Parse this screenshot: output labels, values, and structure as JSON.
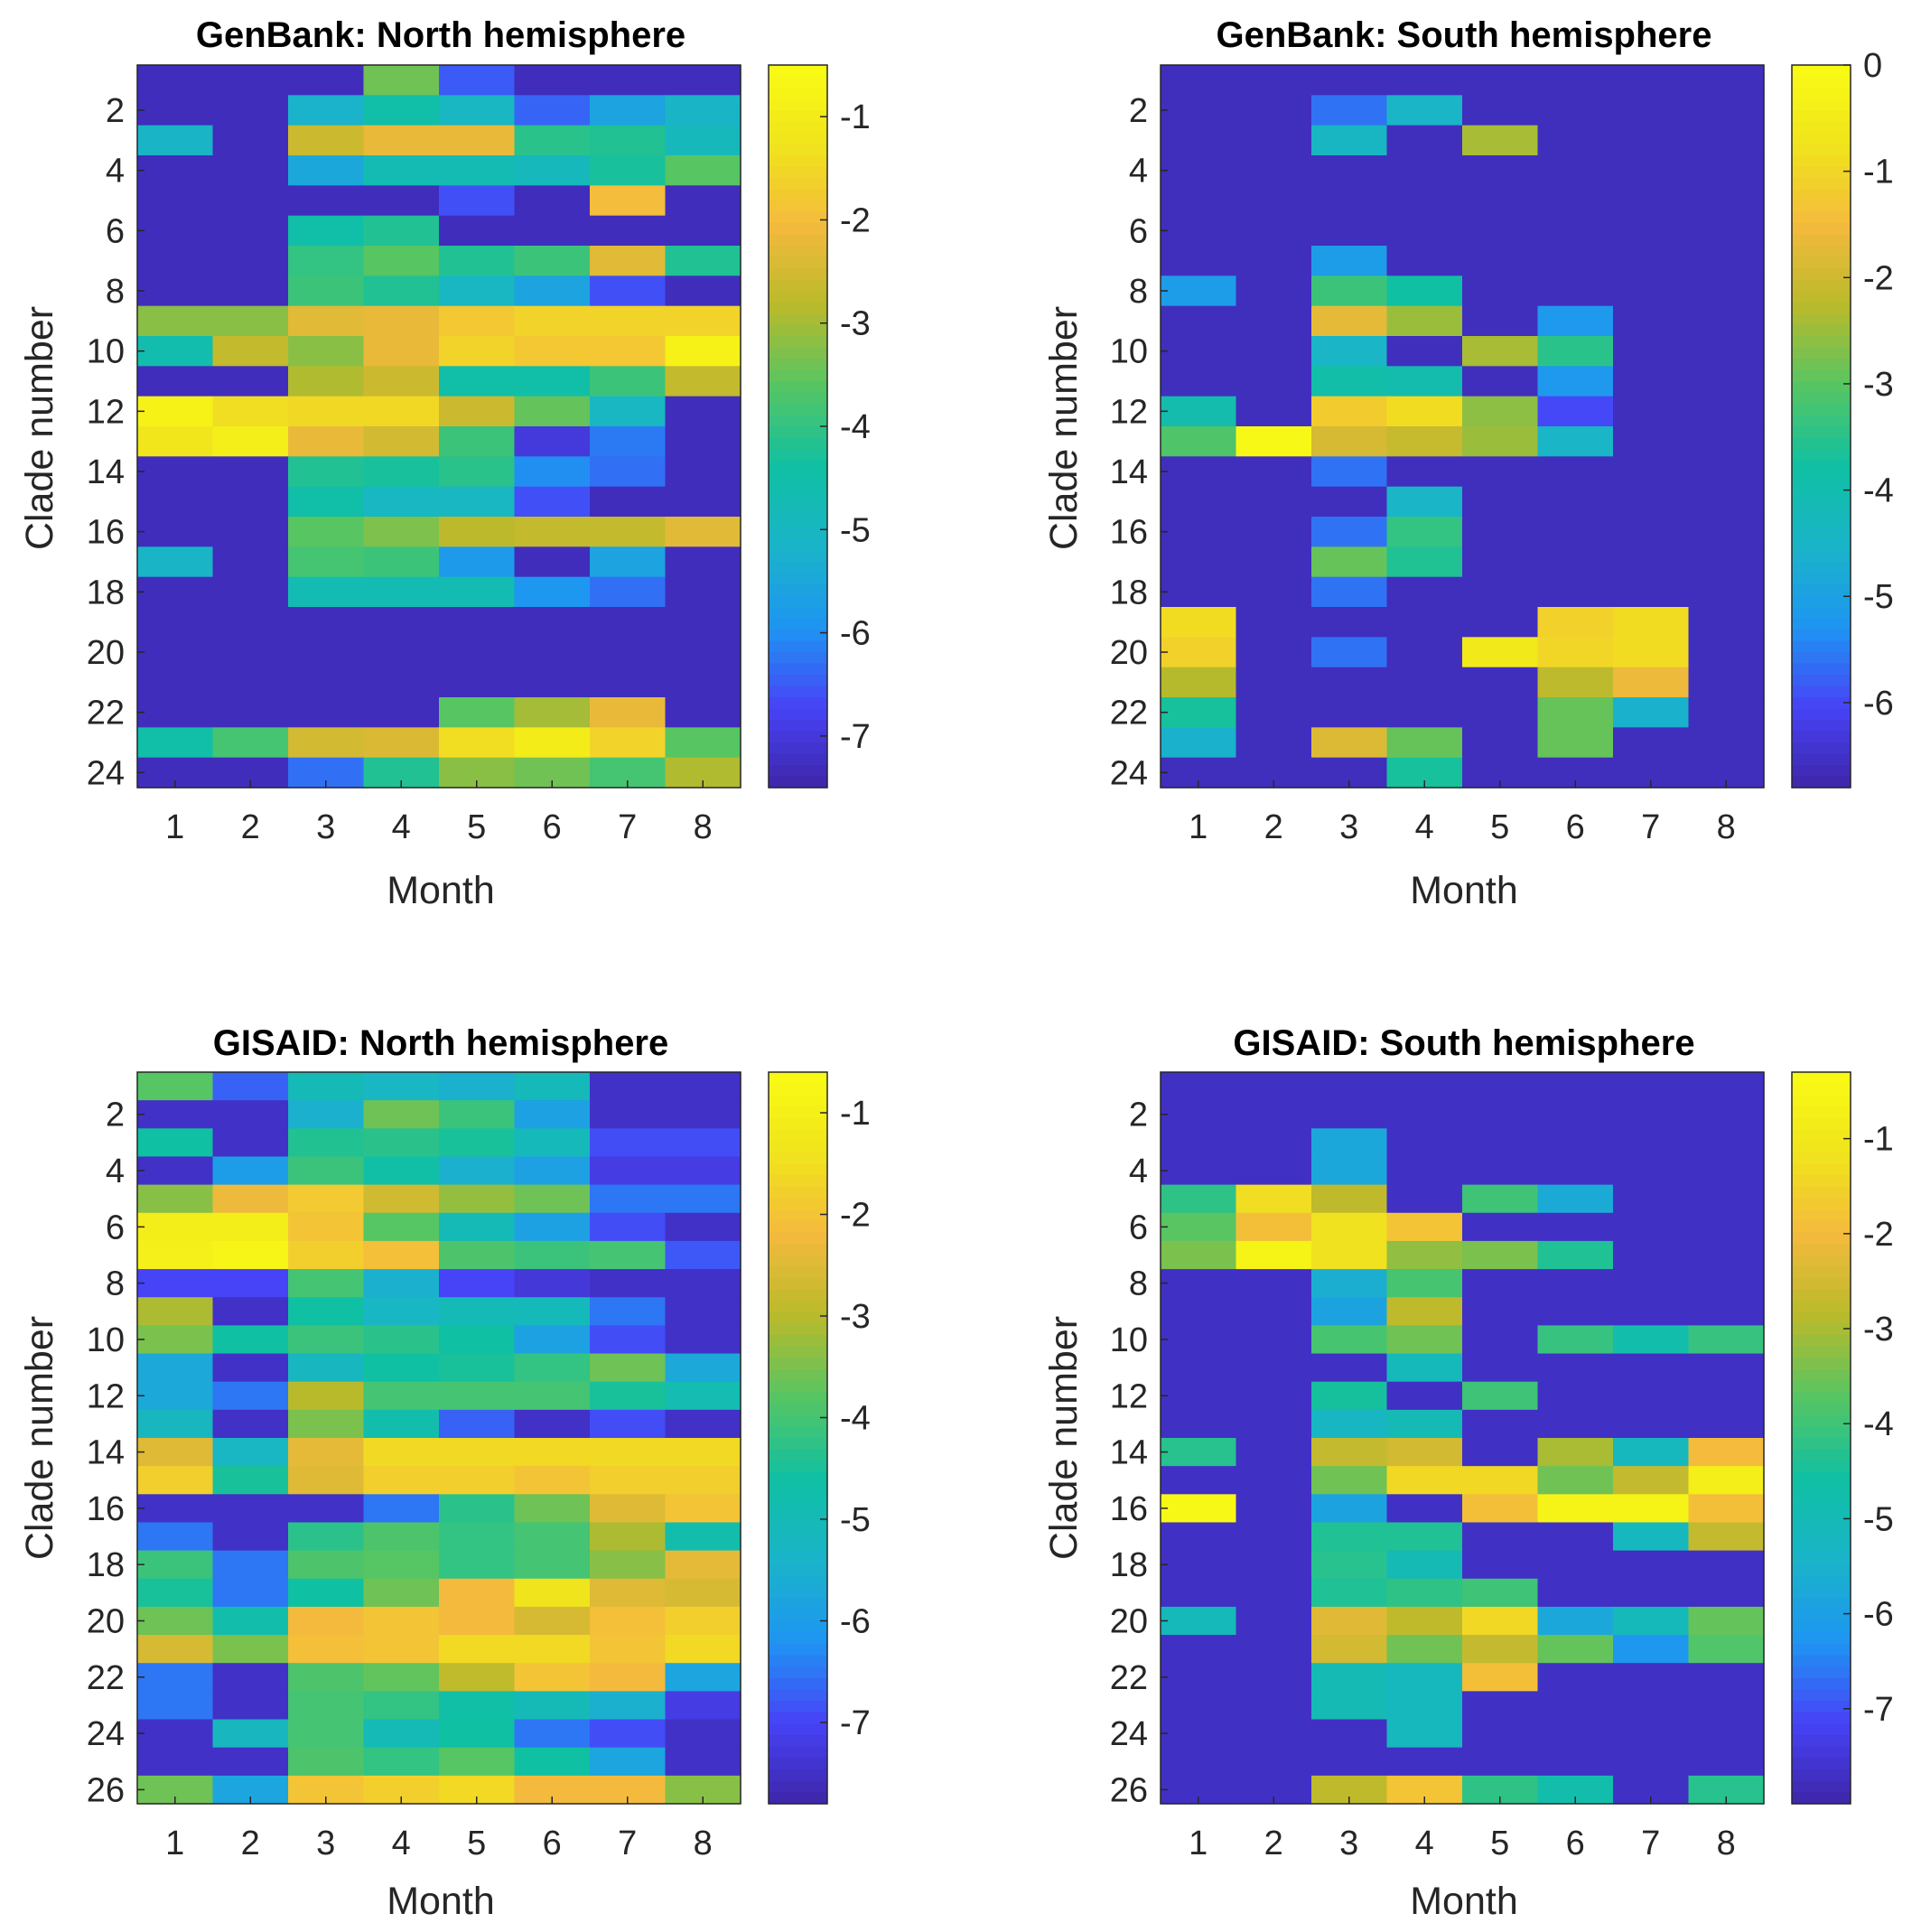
{
  "colormap": [
    "#3e26a8",
    "#4743f7",
    "#1e95f2",
    "#1ab4c9",
    "#10c0a2",
    "#56c563",
    "#b9ba2b",
    "#f4ba3d",
    "#f0e41c",
    "#f9fb15"
  ],
  "chart_data": [
    {
      "type": "heatmap",
      "title": "GenBank: North hemisphere",
      "xlabel": "Month",
      "ylabel": "Clade number",
      "x_categories": [
        "1",
        "2",
        "3",
        "4",
        "5",
        "6",
        "7",
        "8"
      ],
      "y_ticks": [
        "2",
        "4",
        "6",
        "8",
        "10",
        "12",
        "14",
        "16",
        "18",
        "20",
        "22",
        "24"
      ],
      "color_range": [
        -7.5,
        -0.5
      ],
      "colorbar_ticks": [
        "-1",
        "-2",
        "-3",
        "-4",
        "-5",
        "-6",
        "-7"
      ],
      "values": [
        [
          -7.3,
          -7.3,
          -7.3,
          -3.4,
          -6.5,
          -7.3,
          -7.3,
          -7.3
        ],
        [
          -7.3,
          -7.3,
          -5.2,
          -4.5,
          -5.0,
          -6.4,
          -5.6,
          -5.1
        ],
        [
          -5.1,
          -7.3,
          -2.6,
          -2.2,
          -2.2,
          -4.1,
          -4.2,
          -4.9
        ],
        [
          -7.3,
          -7.3,
          -5.5,
          -4.7,
          -4.7,
          -4.9,
          -4.3,
          -3.6
        ],
        [
          -7.3,
          -7.3,
          -7.3,
          -7.3,
          -6.6,
          -7.3,
          -2.0,
          -7.3
        ],
        [
          -7.3,
          -7.3,
          -4.5,
          -4.2,
          -7.3,
          -7.3,
          -7.3,
          -7.3
        ],
        [
          -7.3,
          -7.3,
          -4.0,
          -3.6,
          -4.2,
          -3.9,
          -2.3,
          -4.2
        ],
        [
          -7.3,
          -7.3,
          -3.9,
          -4.2,
          -5.0,
          -5.6,
          -6.6,
          -7.3
        ],
        [
          -3.2,
          -3.2,
          -2.3,
          -2.2,
          -1.8,
          -1.6,
          -1.6,
          -1.6
        ],
        [
          -4.6,
          -2.7,
          -3.2,
          -2.2,
          -1.6,
          -1.8,
          -1.8,
          -0.8
        ],
        [
          -7.3,
          -7.3,
          -2.9,
          -2.6,
          -4.5,
          -4.5,
          -3.9,
          -2.7
        ],
        [
          -0.8,
          -1.4,
          -1.5,
          -1.5,
          -2.6,
          -3.5,
          -5.0,
          -7.3
        ],
        [
          -1.2,
          -0.9,
          -2.2,
          -2.5,
          -3.9,
          -7.0,
          -6.2,
          -7.3
        ],
        [
          -7.3,
          -7.3,
          -4.2,
          -4.3,
          -4.1,
          -6.0,
          -6.3,
          -7.3
        ],
        [
          -7.3,
          -7.3,
          -4.5,
          -5.0,
          -5.0,
          -6.6,
          -7.3,
          -7.3
        ],
        [
          -7.3,
          -7.3,
          -3.6,
          -3.3,
          -2.8,
          -2.7,
          -2.7,
          -2.3
        ],
        [
          -5.1,
          -7.3,
          -3.8,
          -3.9,
          -5.8,
          -7.3,
          -5.6,
          -7.3
        ],
        [
          -7.3,
          -7.3,
          -4.7,
          -4.7,
          -4.7,
          -5.9,
          -6.3,
          -7.3
        ],
        [
          -7.3,
          -7.3,
          -7.3,
          -7.3,
          -7.3,
          -7.3,
          -7.3,
          -7.3
        ],
        [
          -7.3,
          -7.3,
          -7.3,
          -7.3,
          -7.3,
          -7.3,
          -7.3,
          -7.3
        ],
        [
          -7.3,
          -7.3,
          -7.3,
          -7.3,
          -7.3,
          -7.3,
          -7.3,
          -7.3
        ],
        [
          -7.3,
          -7.3,
          -7.3,
          -7.3,
          -3.6,
          -3.0,
          -2.2,
          -7.3
        ],
        [
          -4.5,
          -3.8,
          -2.5,
          -2.4,
          -1.4,
          -1.0,
          -1.6,
          -3.6
        ],
        [
          -7.3,
          -7.3,
          -6.3,
          -4.2,
          -3.2,
          -3.4,
          -3.8,
          -2.9
        ]
      ]
    },
    {
      "type": "heatmap",
      "title": "GenBank: South hemisphere",
      "xlabel": "Month",
      "ylabel": "Clade number",
      "x_categories": [
        "1",
        "2",
        "3",
        "4",
        "5",
        "6",
        "7",
        "8"
      ],
      "y_ticks": [
        "2",
        "4",
        "6",
        "8",
        "10",
        "12",
        "14",
        "16",
        "18",
        "20",
        "22",
        "24"
      ],
      "color_range": [
        -6.8,
        0
      ],
      "colorbar_ticks": [
        "0",
        "-1",
        "-2",
        "-3",
        "-4",
        "-5",
        "-6"
      ],
      "values": [
        [
          -6.6,
          -6.6,
          -6.6,
          -6.6,
          -6.6,
          -6.6,
          -6.6,
          -6.6
        ],
        [
          -6.6,
          -6.6,
          -5.6,
          -4.5,
          -6.6,
          -6.6,
          -6.6,
          -6.6
        ],
        [
          -6.6,
          -6.6,
          -4.4,
          -6.6,
          -2.4,
          -6.6,
          -6.6,
          -6.6
        ],
        [
          -6.6,
          -6.6,
          -6.6,
          -6.6,
          -6.6,
          -6.6,
          -6.6,
          -6.6
        ],
        [
          -6.6,
          -6.6,
          -6.6,
          -6.6,
          -6.6,
          -6.6,
          -6.6,
          -6.6
        ],
        [
          -6.6,
          -6.6,
          -6.6,
          -6.6,
          -6.6,
          -6.6,
          -6.6,
          -6.6
        ],
        [
          -6.6,
          -6.6,
          -5.1,
          -6.6,
          -6.6,
          -6.6,
          -6.6,
          -6.6
        ],
        [
          -5.1,
          -6.6,
          -3.3,
          -3.8,
          -6.6,
          -6.6,
          -6.6,
          -6.6
        ],
        [
          -6.6,
          -6.6,
          -1.7,
          -2.5,
          -6.6,
          -5.2,
          -6.6,
          -6.6
        ],
        [
          -6.6,
          -6.6,
          -4.5,
          -6.6,
          -2.4,
          -3.5,
          -6.6,
          -6.6
        ],
        [
          -6.6,
          -6.6,
          -3.9,
          -4.0,
          -6.6,
          -5.2,
          -6.6,
          -6.6
        ],
        [
          -4.0,
          -6.6,
          -1.2,
          -0.9,
          -2.6,
          -6.0,
          -6.6,
          -6.6
        ],
        [
          -3.1,
          -0.1,
          -1.9,
          -2.1,
          -2.5,
          -4.5,
          -6.6,
          -6.6
        ],
        [
          -6.6,
          -6.6,
          -5.6,
          -6.6,
          -6.6,
          -6.6,
          -6.6,
          -6.6
        ],
        [
          -6.6,
          -6.6,
          -6.6,
          -4.5,
          -6.6,
          -6.6,
          -6.6,
          -6.6
        ],
        [
          -6.6,
          -6.6,
          -5.6,
          -3.4,
          -6.6,
          -6.6,
          -6.6,
          -6.6
        ],
        [
          -6.6,
          -6.6,
          -2.9,
          -3.6,
          -6.6,
          -6.6,
          -6.6,
          -6.6
        ],
        [
          -6.6,
          -6.6,
          -5.6,
          -6.6,
          -6.6,
          -6.6,
          -6.6,
          -6.6
        ],
        [
          -0.9,
          -6.6,
          -6.6,
          -6.6,
          -6.6,
          -1.1,
          -0.9,
          -6.6
        ],
        [
          -1.1,
          -6.6,
          -5.6,
          -6.6,
          -0.6,
          -1.0,
          -0.9,
          -6.6
        ],
        [
          -2.3,
          -6.6,
          -6.6,
          -6.6,
          -6.6,
          -2.2,
          -1.6,
          -6.6
        ],
        [
          -3.7,
          -6.6,
          -6.6,
          -6.6,
          -6.6,
          -2.9,
          -4.6,
          -6.6
        ],
        [
          -4.6,
          -6.6,
          -1.8,
          -2.9,
          -6.6,
          -2.9,
          -6.6,
          -6.6
        ],
        [
          -6.6,
          -6.6,
          -6.6,
          -3.7,
          -6.6,
          -6.6,
          -6.6,
          -6.6
        ]
      ]
    },
    {
      "type": "heatmap",
      "title": "GISAID: North hemisphere",
      "xlabel": "Month",
      "ylabel": "Clade number",
      "x_categories": [
        "1",
        "2",
        "3",
        "4",
        "5",
        "6",
        "7",
        "8"
      ],
      "y_ticks": [
        "2",
        "4",
        "6",
        "8",
        "10",
        "12",
        "14",
        "16",
        "18",
        "20",
        "22",
        "24",
        "26"
      ],
      "color_range": [
        -7.8,
        -0.6
      ],
      "colorbar_ticks": [
        "-1",
        "-2",
        "-3",
        "-4",
        "-5",
        "-6",
        "-7"
      ],
      "values": [
        [
          -3.8,
          -6.7,
          -5.0,
          -5.3,
          -5.5,
          -5.1,
          -7.5,
          -7.5
        ],
        [
          -7.5,
          -7.5,
          -5.5,
          -3.6,
          -4.1,
          -5.9,
          -7.5,
          -7.5
        ],
        [
          -4.6,
          -7.5,
          -4.4,
          -4.3,
          -4.5,
          -5.1,
          -6.9,
          -6.9
        ],
        [
          -7.5,
          -6.0,
          -4.1,
          -4.7,
          -5.5,
          -5.9,
          -7.2,
          -7.2
        ],
        [
          -3.4,
          -2.3,
          -1.9,
          -2.7,
          -3.3,
          -3.6,
          -6.5,
          -6.5
        ],
        [
          -1.1,
          -1.1,
          -2.0,
          -3.8,
          -5.0,
          -5.9,
          -6.9,
          -7.5
        ],
        [
          -1.0,
          -0.8,
          -1.8,
          -2.1,
          -3.9,
          -4.1,
          -4.0,
          -6.8
        ],
        [
          -7.0,
          -7.0,
          -4.0,
          -5.5,
          -7.0,
          -7.3,
          -7.5,
          -7.5
        ],
        [
          -3.1,
          -7.5,
          -4.6,
          -5.3,
          -5.0,
          -5.1,
          -6.5,
          -7.5
        ],
        [
          -3.5,
          -4.6,
          -4.1,
          -4.3,
          -4.6,
          -5.9,
          -6.9,
          -7.5
        ],
        [
          -5.7,
          -7.5,
          -5.2,
          -4.6,
          -4.5,
          -4.2,
          -3.6,
          -5.7
        ],
        [
          -5.7,
          -6.5,
          -3.0,
          -4.0,
          -4.0,
          -4.0,
          -4.5,
          -4.9
        ],
        [
          -5.2,
          -7.5,
          -3.5,
          -4.8,
          -6.7,
          -7.5,
          -6.9,
          -7.5
        ],
        [
          -2.5,
          -5.3,
          -2.4,
          -1.6,
          -1.6,
          -1.6,
          -1.6,
          -1.6
        ],
        [
          -1.8,
          -4.5,
          -2.5,
          -1.8,
          -1.8,
          -2.0,
          -1.8,
          -1.8
        ],
        [
          -7.5,
          -7.5,
          -7.5,
          -6.5,
          -4.3,
          -3.6,
          -2.5,
          -2.0
        ],
        [
          -6.5,
          -7.5,
          -4.3,
          -3.9,
          -4.2,
          -4.0,
          -3.1,
          -4.8
        ],
        [
          -4.1,
          -6.5,
          -3.9,
          -3.8,
          -4.2,
          -4.0,
          -3.4,
          -2.4
        ],
        [
          -4.5,
          -6.5,
          -4.6,
          -3.6,
          -2.2,
          -1.4,
          -2.5,
          -2.6
        ],
        [
          -3.6,
          -4.8,
          -2.2,
          -2.0,
          -2.2,
          -2.6,
          -2.1,
          -1.8
        ],
        [
          -2.6,
          -3.5,
          -2.1,
          -2.0,
          -1.6,
          -1.6,
          -2.0,
          -1.6
        ],
        [
          -6.5,
          -7.5,
          -3.9,
          -3.7,
          -2.9,
          -2.0,
          -2.2,
          -5.8
        ],
        [
          -6.5,
          -7.5,
          -4.0,
          -4.2,
          -4.7,
          -5.0,
          -5.5,
          -7.2
        ],
        [
          -7.5,
          -5.2,
          -4.0,
          -5.0,
          -4.6,
          -6.5,
          -6.9,
          -7.5
        ],
        [
          -7.5,
          -7.5,
          -3.9,
          -4.2,
          -3.8,
          -4.6,
          -5.8,
          -7.5
        ],
        [
          -3.6,
          -5.8,
          -2.0,
          -1.8,
          -1.6,
          -2.2,
          -2.2,
          -3.4
        ]
      ]
    },
    {
      "type": "heatmap",
      "title": "GISAID: South hemisphere",
      "xlabel": "Month",
      "ylabel": "Clade number",
      "x_categories": [
        "1",
        "2",
        "3",
        "4",
        "5",
        "6",
        "7",
        "8"
      ],
      "y_ticks": [
        "2",
        "4",
        "6",
        "8",
        "10",
        "12",
        "14",
        "16",
        "18",
        "20",
        "22",
        "24",
        "26"
      ],
      "color_range": [
        -8.0,
        -0.3
      ],
      "colorbar_ticks": [
        "-1",
        "-2",
        "-3",
        "-4",
        "-5",
        "-6",
        "-7"
      ],
      "values": [
        [
          -7.7,
          -7.7,
          -7.7,
          -7.7,
          -7.7,
          -7.7,
          -7.7,
          -7.7
        ],
        [
          -7.7,
          -7.7,
          -7.7,
          -7.7,
          -7.7,
          -7.7,
          -7.7,
          -7.7
        ],
        [
          -7.7,
          -7.7,
          -5.8,
          -7.7,
          -7.7,
          -7.7,
          -7.7,
          -7.7
        ],
        [
          -7.7,
          -7.7,
          -5.8,
          -7.7,
          -7.7,
          -7.7,
          -7.7,
          -7.7
        ],
        [
          -4.2,
          -1.3,
          -2.8,
          -7.7,
          -4.0,
          -5.7,
          -7.7,
          -7.7
        ],
        [
          -3.7,
          -1.9,
          -1.2,
          -1.8,
          -7.7,
          -7.7,
          -7.7,
          -7.7
        ],
        [
          -3.4,
          -0.6,
          -1.2,
          -3.2,
          -3.4,
          -4.4,
          -7.7,
          -7.7
        ],
        [
          -7.7,
          -7.7,
          -5.6,
          -3.9,
          -7.7,
          -7.7,
          -7.7,
          -7.7
        ],
        [
          -7.7,
          -7.7,
          -5.9,
          -2.8,
          -7.7,
          -7.7,
          -7.7,
          -7.7
        ],
        [
          -7.7,
          -7.7,
          -3.9,
          -3.5,
          -7.7,
          -4.1,
          -4.8,
          -4.1
        ],
        [
          -7.7,
          -7.7,
          -7.7,
          -5.1,
          -7.7,
          -7.7,
          -7.7,
          -7.7
        ],
        [
          -7.7,
          -7.7,
          -4.5,
          -7.7,
          -4.0,
          -7.7,
          -7.7,
          -7.7
        ],
        [
          -7.7,
          -7.7,
          -5.3,
          -5.0,
          -7.7,
          -7.7,
          -7.7,
          -7.7
        ],
        [
          -4.3,
          -7.7,
          -2.7,
          -2.5,
          -7.7,
          -3.0,
          -5.2,
          -2.0
        ],
        [
          -7.7,
          -7.7,
          -3.5,
          -1.4,
          -1.4,
          -3.5,
          -2.7,
          -0.8
        ],
        [
          -0.4,
          -7.7,
          -5.9,
          -7.7,
          -1.9,
          -0.6,
          -0.6,
          -1.9
        ],
        [
          -7.7,
          -7.7,
          -4.4,
          -4.4,
          -7.7,
          -7.7,
          -5.2,
          -2.7
        ],
        [
          -7.7,
          -7.7,
          -4.3,
          -5.0,
          -7.7,
          -7.7,
          -7.7,
          -7.7
        ],
        [
          -7.7,
          -7.7,
          -4.4,
          -4.2,
          -4.0,
          -7.7,
          -7.7,
          -7.7
        ],
        [
          -5.1,
          -7.7,
          -2.3,
          -2.8,
          -1.4,
          -5.8,
          -5.1,
          -3.6
        ],
        [
          -7.7,
          -7.7,
          -2.5,
          -3.5,
          -2.7,
          -3.6,
          -6.2,
          -3.8
        ],
        [
          -7.7,
          -7.7,
          -5.0,
          -5.2,
          -1.9,
          -7.7,
          -7.7,
          -7.7
        ],
        [
          -7.7,
          -7.7,
          -5.0,
          -5.2,
          -7.7,
          -7.7,
          -7.7,
          -7.7
        ],
        [
          -7.7,
          -7.7,
          -7.7,
          -5.2,
          -7.7,
          -7.7,
          -7.7,
          -7.7
        ],
        [
          -7.7,
          -7.7,
          -7.7,
          -7.7,
          -7.7,
          -7.7,
          -7.7,
          -7.7
        ],
        [
          -7.7,
          -7.7,
          -2.8,
          -1.8,
          -4.2,
          -4.8,
          -7.7,
          -4.3
        ]
      ]
    }
  ]
}
